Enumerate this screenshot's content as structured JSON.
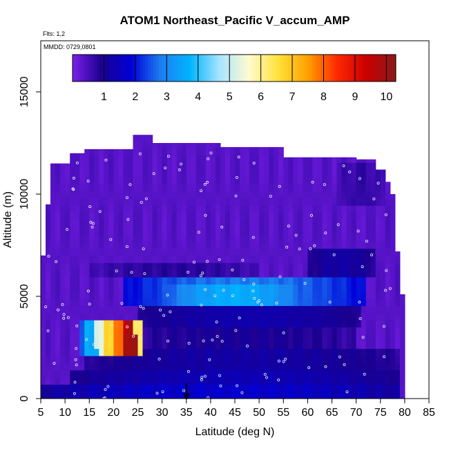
{
  "chart_data": {
    "type": "heatmap",
    "title": "ATOM1 Northeast_Pacific V_accum_AMP",
    "subtitle": "Flts: 1,2",
    "annotation": "MMDD: 0729,0801",
    "xlabel": "Latitude (deg N)",
    "ylabel": "Altitude (m)",
    "xlim": [
      5,
      85
    ],
    "ylim": [
      0,
      17500
    ],
    "x_ticks": [
      "5",
      "10",
      "15",
      "20",
      "25",
      "30",
      "35",
      "40",
      "45",
      "50",
      "55",
      "60",
      "65",
      "70",
      "75",
      "80",
      "85"
    ],
    "y_ticks": [
      "0",
      "5000",
      "10000",
      "15000"
    ],
    "colorbar": {
      "range": [
        0,
        10.3
      ],
      "tick_labels": [
        "1",
        "2",
        "3",
        "4",
        "5",
        "6",
        "7",
        "8",
        "9",
        "10"
      ],
      "stops": [
        "#7a1fe8",
        "#1a008f",
        "#0000d8",
        "#1e7ef0",
        "#00b4ff",
        "#a8e4ff",
        "#fffbd0",
        "#ffe23a",
        "#ffa000",
        "#ff2800",
        "#c80000",
        "#8b1a1a"
      ]
    },
    "column_extent_m": [
      [
        5,
        7000
      ],
      [
        6,
        9500
      ],
      [
        7,
        11500
      ],
      [
        11,
        12000
      ],
      [
        14,
        12200
      ],
      [
        24,
        12900
      ],
      [
        28,
        12500
      ],
      [
        42,
        12300
      ],
      [
        55,
        11800
      ],
      [
        70,
        11700
      ],
      [
        74,
        11200
      ],
      [
        76,
        10600
      ],
      [
        77,
        10000
      ],
      [
        78,
        7200
      ],
      [
        79,
        5100
      ],
      [
        80,
        0
      ]
    ],
    "layers": [
      {
        "lat": [
          5,
          79
        ],
        "alt": [
          0,
          700
        ],
        "value": 1.7
      },
      {
        "lat": [
          11,
          79
        ],
        "alt": [
          700,
          1400
        ],
        "value": 1.4
      },
      {
        "lat": [
          14,
          79
        ],
        "alt": [
          1400,
          2500
        ],
        "value": 1.2
      },
      {
        "lat": [
          22,
          70
        ],
        "alt": [
          2500,
          3500
        ],
        "value": 1.0
      },
      {
        "lat": [
          25,
          71
        ],
        "alt": [
          3500,
          4700
        ],
        "value": 1.3
      },
      {
        "lat": [
          22,
          72
        ],
        "alt": [
          4700,
          6000
        ],
        "value": 2.8
      },
      {
        "lat": [
          30,
          60
        ],
        "alt": [
          4600,
          5500
        ],
        "value": 3.6
      },
      {
        "lat": [
          15,
          50
        ],
        "alt": [
          6000,
          6800
        ],
        "value": 0.8
      },
      {
        "lat": [
          60,
          74
        ],
        "alt": [
          6000,
          7500
        ],
        "value": 1.2
      },
      {
        "lat": [
          66,
          76
        ],
        "alt": [
          9500,
          11500
        ],
        "value": 0.7
      }
    ],
    "hotspot": {
      "lat": [
        13,
        26
      ],
      "alt": [
        2200,
        4000
      ],
      "values": [
        {
          "lat": 13,
          "alt": 2500,
          "value": 2.4
        },
        {
          "lat": 15,
          "alt": 2500,
          "value": 3.6
        },
        {
          "lat": 17,
          "alt": 3100,
          "value": 5.2
        },
        {
          "lat": 19,
          "alt": 3600,
          "value": 6.8
        },
        {
          "lat": 21,
          "alt": 3300,
          "value": 7.8
        },
        {
          "lat": 22,
          "alt": 3300,
          "value": 9.6
        },
        {
          "lat": 23,
          "alt": 3000,
          "value": 10.0
        },
        {
          "lat": 25,
          "alt": 3600,
          "value": 6.2
        }
      ]
    },
    "marker": {
      "lat": 35,
      "alt": 0,
      "type": "down-arrow"
    }
  }
}
